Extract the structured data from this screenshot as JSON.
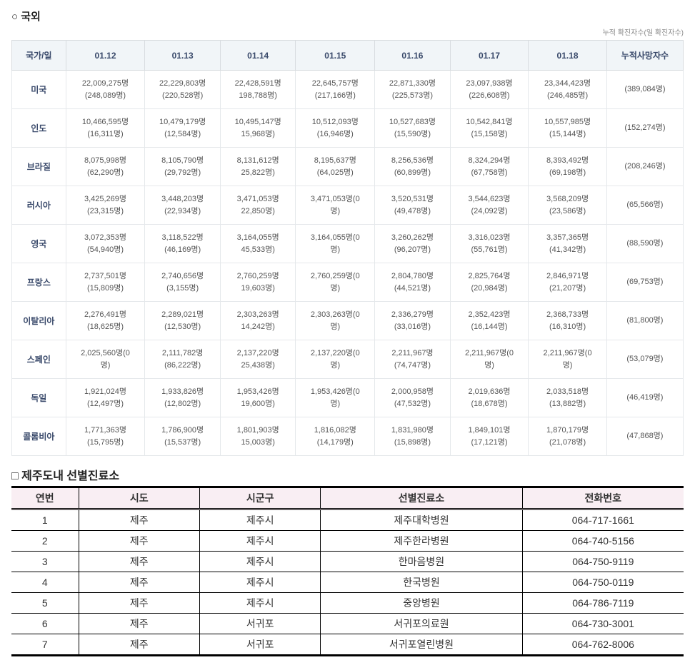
{
  "section1": {
    "title": "○ 국외",
    "note": "누적 확진자수(일 확진자수)",
    "headers": [
      "국가/일",
      "01.12",
      "01.13",
      "01.14",
      "01.15",
      "01.16",
      "01.17",
      "01.18",
      "누적사망자수"
    ],
    "rows": [
      {
        "country": "미국",
        "cells": [
          "22,009,275명\n(248,089명)",
          "22,229,803명\n(220,528명)",
          "22,428,591명\n198,788명)",
          "22,645,757명\n(217,166명)",
          "22,871,330명\n(225,573명)",
          "23,097,938명\n(226,608명)",
          "23,344,423명\n(246,485명)"
        ],
        "deaths": "(389,084명)"
      },
      {
        "country": "인도",
        "cells": [
          "10,466,595명\n(16,311명)",
          "10,479,179명\n(12,584명)",
          "10,495,147명\n15,968명)",
          "10,512,093명\n(16,946명)",
          "10,527,683명\n(15,590명)",
          "10,542,841명\n(15,158명)",
          "10,557,985명\n(15,144명)"
        ],
        "deaths": "(152,274명)"
      },
      {
        "country": "브라질",
        "cells": [
          "8,075,998명\n(62,290명)",
          "8,105,790명\n(29,792명)",
          "8,131,612명\n25,822명)",
          "8,195,637명\n(64,025명)",
          "8,256,536명\n(60,899명)",
          "8,324,294명\n(67,758명)",
          "8,393,492명\n(69,198명)"
        ],
        "deaths": "(208,246명)"
      },
      {
        "country": "러시아",
        "cells": [
          "3,425,269명\n(23,315명)",
          "3,448,203명\n(22,934명)",
          "3,471,053명\n22,850명)",
          "3,471,053명(0\n명)",
          "3,520,531명\n(49,478명)",
          "3,544,623명\n(24,092명)",
          "3,568,209명\n(23,586명)"
        ],
        "deaths": "(65,566명)"
      },
      {
        "country": "영국",
        "cells": [
          "3,072,353명\n(54,940명)",
          "3,118,522명\n(46,169명)",
          "3,164,055명\n45,533명)",
          "3,164,055명(0\n명)",
          "3,260,262명\n(96,207명)",
          "3,316,023명\n(55,761명)",
          "3,357,365명\n(41,342명)"
        ],
        "deaths": "(88,590명)"
      },
      {
        "country": "프랑스",
        "cells": [
          "2,737,501명\n(15,809명)",
          "2,740,656명\n(3,155명)",
          "2,760,259명\n19,603명)",
          "2,760,259명(0\n명)",
          "2,804,780명\n(44,521명)",
          "2,825,764명\n(20,984명)",
          "2,846,971명\n(21,207명)"
        ],
        "deaths": "(69,753명)"
      },
      {
        "country": "이탈리아",
        "cells": [
          "2,276,491명\n(18,625명)",
          "2,289,021명\n(12,530명)",
          "2,303,263명\n14,242명)",
          "2,303,263명(0\n명)",
          "2,336,279명\n(33,016명)",
          "2,352,423명\n(16,144명)",
          "2,368,733명\n(16,310명)"
        ],
        "deaths": "(81,800명)"
      },
      {
        "country": "스페인",
        "cells": [
          "2,025,560명(0\n명)",
          "2,111,782명\n(86,222명)",
          "2,137,220명\n25,438명)",
          "2,137,220명(0\n명)",
          "2,211,967명\n(74,747명)",
          "2,211,967명(0\n명)",
          "2,211,967명(0\n명)"
        ],
        "deaths": "(53,079명)"
      },
      {
        "country": "독일",
        "cells": [
          "1,921,024명\n(12,497명)",
          "1,933,826명\n(12,802명)",
          "1,953,426명\n19,600명)",
          "1,953,426명(0\n명)",
          "2,000,958명\n(47,532명)",
          "2,019,636명\n(18,678명)",
          "2,033,518명\n(13,882명)"
        ],
        "deaths": "(46,419명)"
      },
      {
        "country": "콜롬비아",
        "cells": [
          "1,771,363명\n(15,795명)",
          "1,786,900명\n(15,537명)",
          "1,801,903명\n15,003명)",
          "1,816,082명\n(14,179명)",
          "1,831,980명\n(15,898명)",
          "1,849,101명\n(17,121명)",
          "1,870,179명\n(21,078명)"
        ],
        "deaths": "(47,868명)"
      }
    ]
  },
  "section2": {
    "title": "□ 제주도내 선별진료소",
    "headers": [
      "연번",
      "시도",
      "시군구",
      "선별진료소",
      "전화번호"
    ],
    "rows": [
      [
        "1",
        "제주",
        "제주시",
        "제주대학병원",
        "064-717-1661"
      ],
      [
        "2",
        "제주",
        "제주시",
        "제주한라병원",
        "064-740-5156"
      ],
      [
        "3",
        "제주",
        "제주시",
        "한마음병원",
        "064-750-9119"
      ],
      [
        "4",
        "제주",
        "제주시",
        "한국병원",
        "064-750-0119"
      ],
      [
        "5",
        "제주",
        "제주시",
        "중앙병원",
        "064-786-7119"
      ],
      [
        "6",
        "제주",
        "서귀포",
        "서귀포의료원",
        "064-730-3001"
      ],
      [
        "7",
        "제주",
        "서귀포",
        "서귀포열린병원",
        "064-762-8006"
      ]
    ]
  }
}
